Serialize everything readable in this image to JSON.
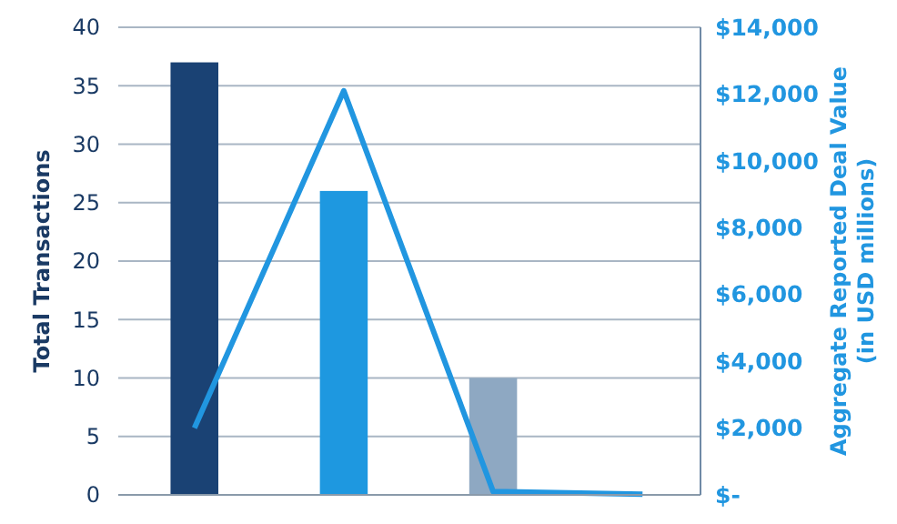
{
  "chart_data": {
    "type": "bar",
    "categories": [
      null,
      null,
      null,
      null
    ],
    "ylabel": "Total Transactions",
    "y2label": "Aggregate Reported Deal Value\n(in USD millions)",
    "series": [
      {
        "colors": [
          "#1a4274",
          "#1e98e0",
          "#8ea8c2",
          null
        ],
        "values": [
          37,
          26,
          10,
          null
        ]
      },
      {
        "type": "line",
        "axis": "y2",
        "color": "#2196e0",
        "values": [
          2000,
          12100,
          100,
          20
        ]
      }
    ],
    "ylim": [
      0,
      40
    ],
    "yticks": [
      0,
      5,
      10,
      15,
      20,
      25,
      30,
      35,
      40
    ],
    "y2lim": [
      0,
      14000
    ],
    "y2ticks": [
      {
        "value": 0,
        "label": "$-"
      },
      {
        "value": 2000,
        "label": "$2,000"
      },
      {
        "value": 4000,
        "label": "$4,000"
      },
      {
        "value": 6000,
        "label": "$6,000"
      },
      {
        "value": 8000,
        "label": "$8,000"
      },
      {
        "value": 10000,
        "label": "$10,000"
      },
      {
        "value": 12000,
        "label": "$12,000"
      },
      {
        "value": 14000,
        "label": "$14,000"
      }
    ],
    "grid": "y",
    "marker": "none",
    "line_style": "solid"
  }
}
